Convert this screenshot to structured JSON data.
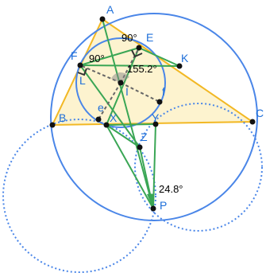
{
  "colors": {
    "triangle_fill": "#fdf3cf",
    "triangle_stroke": "#f2b824",
    "circle_blue": "#4a86e8",
    "dotted_blue": "#4a86e8",
    "green": "#3aa655",
    "dash_gray": "#666666",
    "point": "#111111",
    "label_blue": "#1e6fd9",
    "angle_fill": "#3aa655"
  },
  "labels": {
    "A": "A",
    "B": "B",
    "C": "C",
    "E": "E",
    "F": "F",
    "K": "K",
    "L": "L",
    "I": "I",
    "X": "X",
    "Y": "Y",
    "Z": "Z",
    "P": "P",
    "e": "e",
    "f": "f"
  },
  "angles": {
    "angle_E": "90°",
    "angle_F": "90°",
    "angle_I": "155.2°",
    "angle_P": "24.8°"
  }
}
